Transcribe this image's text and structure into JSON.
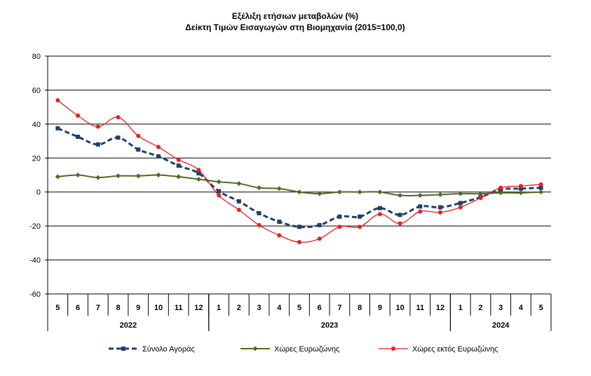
{
  "chart_data": {
    "type": "line",
    "title": "Εξέλιξη ετήσιων μεταβολών (%)",
    "subtitle": "Δείκτη Τιμών Εισαγωγών στη Βιομηχανία (2015=100,0)",
    "categories": [
      "5",
      "6",
      "7",
      "8",
      "9",
      "10",
      "11",
      "12",
      "1",
      "2",
      "3",
      "4",
      "5",
      "6",
      "7",
      "8",
      "9",
      "10",
      "11",
      "12",
      "1",
      "2",
      "3",
      "4",
      "5"
    ],
    "years": [
      {
        "label": "2022",
        "from": 0,
        "to": 7
      },
      {
        "label": "2023",
        "from": 8,
        "to": 19
      },
      {
        "label": "2024",
        "from": 20,
        "to": 24
      }
    ],
    "ylim": [
      -60,
      80
    ],
    "yticks": [
      -60,
      -40,
      -20,
      0,
      20,
      40,
      60,
      80
    ],
    "grid": true,
    "legend_position": "bottom",
    "series": [
      {
        "name": "Σύνολο Αγοράς",
        "color": "#1f3f6e",
        "style": "dashed-square",
        "values": [
          37.5,
          32.5,
          28,
          32,
          25,
          21,
          15.5,
          11,
          0.5,
          -5.5,
          -12.5,
          -17.5,
          -20.5,
          -19.5,
          -14.5,
          -14.5,
          -9.5,
          -13.5,
          -8.5,
          -9,
          -6.5,
          -3,
          1.5,
          2,
          2.5
        ]
      },
      {
        "name": "Χώρες Ευρωζώνης",
        "color": "#4f6a23",
        "style": "solid-diamond",
        "values": [
          9,
          10,
          8.5,
          9.5,
          9.5,
          10,
          9,
          7.5,
          6,
          5,
          2.5,
          2,
          0,
          -1,
          0,
          0,
          0,
          -2,
          -2,
          -1.5,
          -1,
          -1,
          -0.5,
          -0.5,
          0
        ]
      },
      {
        "name": "Χώρες εκτός Ευρωζώνης",
        "color": "#ee1c1c",
        "style": "solid-circle",
        "values": [
          54,
          45,
          38.5,
          44,
          33,
          26.5,
          19,
          13,
          -2,
          -10.5,
          -19.5,
          -25.5,
          -29.5,
          -27.5,
          -20.5,
          -20.5,
          -13,
          -18.5,
          -11.5,
          -12,
          -9,
          -3.5,
          2.5,
          3.5,
          4.5
        ]
      }
    ]
  }
}
